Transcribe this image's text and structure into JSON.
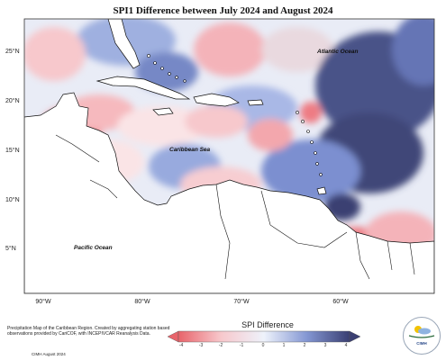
{
  "title": "SPI1 Difference between July 2024 and August 2024",
  "ocean_labels": {
    "atlantic": "Atlantic Ocean",
    "caribbean": "Caribbean Sea",
    "pacific": "Pacific Ocean"
  },
  "axes": {
    "lat_labels": [
      "25°N",
      "20°N",
      "15°N",
      "10°N",
      "5°N"
    ],
    "lon_labels": [
      "90°W",
      "80°W",
      "70°W",
      "60°W"
    ]
  },
  "legend": {
    "title": "SPI Difference",
    "ticks": [
      "-4",
      "-3",
      "-2",
      "-1",
      "0",
      "1",
      "2",
      "3",
      "4"
    ],
    "colors": [
      "#e8646b",
      "#f19aa0",
      "#f7c8cc",
      "#fae4e6",
      "#eef2fb",
      "#b9c7ea",
      "#8497d3",
      "#5865a8",
      "#3a3f72"
    ]
  },
  "footnote": "Precipitation Map of the Caribbean Region. Created by aggregating station based observations provided by CariCOF, with INCEPIVCAR Reanalysis Data.",
  "credit": "CIMH August 2024",
  "logo_text": "CIMH",
  "colors": {
    "land": "#ffffff",
    "dry_strong": "#ee7b83",
    "wet_strong": "#454d85"
  }
}
